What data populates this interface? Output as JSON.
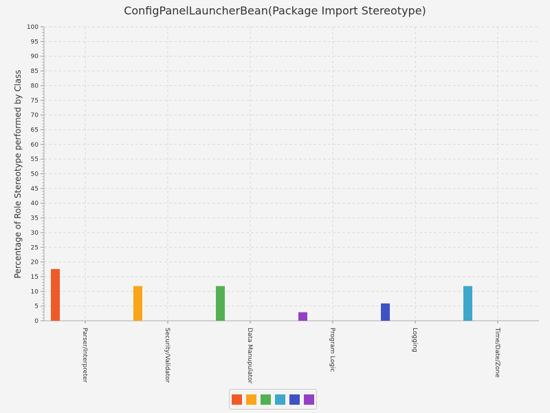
{
  "chart_data": {
    "type": "bar",
    "title": "ConfigPanelLauncherBean(Package Import Stereotype)",
    "xlabel": "",
    "ylabel": "Percentage of Role Stereotype performed by Class",
    "ylim": [
      0,
      100
    ],
    "y_tick_step": 5,
    "grid": true,
    "legend_position": "bottom",
    "categories": [
      "Parser/Interpreter",
      "Security/Validator",
      "Data Manupulator",
      "Program Logic",
      "Logging",
      "Time/Date/Zone"
    ],
    "values": [
      17.6,
      11.8,
      11.8,
      2.9,
      5.9,
      11.8
    ],
    "colors": [
      "#f05a28",
      "#faa51a",
      "#54b054",
      "#3fa7c9",
      "#3f51c4",
      "#9340c4"
    ],
    "bar_colors": [
      "#f05a28",
      "#faa51a",
      "#54b054",
      "#9340c4",
      "#3f51c4",
      "#3fa7c9"
    ]
  }
}
